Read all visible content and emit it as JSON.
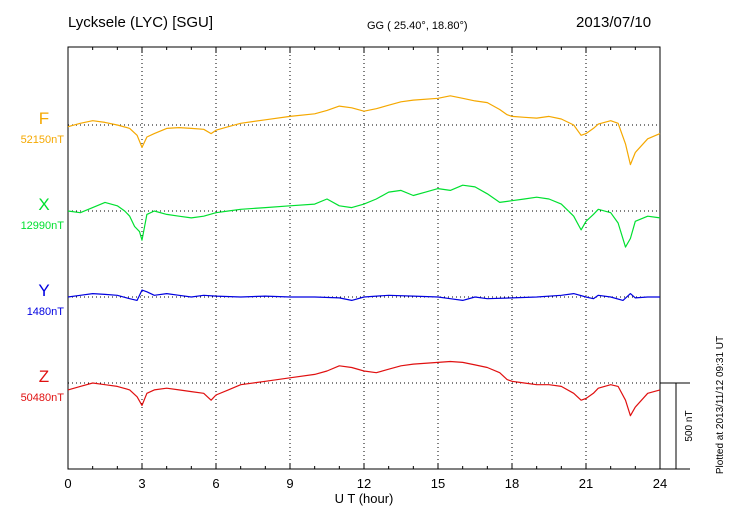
{
  "header": {
    "station": "Lycksele (LYC)  [SGU]",
    "coords": "GG ( 25.40°,  18.80°)",
    "date": "2013/07/10"
  },
  "plotted_note": "Plotted at 2013/11/12 09:31  UT",
  "scale_label": "500 nT",
  "chart_data": {
    "type": "line",
    "title": "",
    "xlabel": "U T (hour)",
    "ylabel": "",
    "xlim": [
      0,
      24
    ],
    "xticks": [
      "0",
      "3",
      "6",
      "9",
      "12",
      "15",
      "18",
      "21",
      "24"
    ],
    "grid": true,
    "scale_bar_nT": 500,
    "series": [
      {
        "name": "F",
        "baseline_label": "52150nT",
        "baseline_nT": 52150,
        "color": "#f5a800",
        "x": [
          0,
          0.5,
          1,
          1.5,
          2,
          2.5,
          2.8,
          3,
          3.2,
          3.5,
          4,
          4.5,
          5,
          5.5,
          5.8,
          6,
          6.5,
          7,
          8,
          9,
          10,
          10.5,
          11,
          11.5,
          12,
          12.5,
          13,
          13.5,
          14,
          15,
          15.5,
          16,
          16.5,
          17,
          17.5,
          17.8,
          18,
          18.5,
          19,
          19.5,
          20,
          20.5,
          20.8,
          21,
          21.3,
          21.5,
          22,
          22.3,
          22.6,
          22.8,
          23,
          23.5,
          24
        ],
        "y": [
          52140,
          52160,
          52175,
          52165,
          52150,
          52130,
          52090,
          52020,
          52080,
          52100,
          52130,
          52135,
          52130,
          52125,
          52100,
          52120,
          52140,
          52160,
          52180,
          52200,
          52215,
          52235,
          52260,
          52250,
          52230,
          52245,
          52265,
          52285,
          52295,
          52305,
          52320,
          52305,
          52290,
          52280,
          52240,
          52210,
          52200,
          52195,
          52190,
          52200,
          52185,
          52150,
          52090,
          52100,
          52130,
          52155,
          52175,
          52160,
          52040,
          51920,
          51990,
          52070,
          52100
        ]
      },
      {
        "name": "X",
        "baseline_label": "12990nT",
        "baseline_nT": 12990,
        "color": "#00e030",
        "x": [
          0,
          0.5,
          1,
          1.5,
          2,
          2.3,
          2.5,
          2.7,
          2.9,
          3,
          3.2,
          3.5,
          4,
          4.5,
          5,
          5.5,
          6,
          6.5,
          7,
          8,
          9,
          10,
          10.5,
          11,
          11.5,
          12,
          12.5,
          13,
          13.5,
          14,
          14.5,
          15,
          15.5,
          16,
          16.5,
          17,
          17.5,
          18,
          18.5,
          19,
          19.5,
          20,
          20.5,
          20.8,
          21,
          21.3,
          21.5,
          22,
          22.3,
          22.6,
          22.8,
          23,
          23.5,
          24
        ],
        "y": [
          12990,
          12980,
          13010,
          13040,
          13020,
          12990,
          12960,
          12900,
          12870,
          12820,
          12970,
          12990,
          12970,
          12960,
          12950,
          12960,
          12980,
          12990,
          13000,
          13010,
          13020,
          13030,
          13060,
          13020,
          13010,
          13030,
          13060,
          13100,
          13110,
          13080,
          13100,
          13120,
          13110,
          13140,
          13130,
          13090,
          13040,
          13050,
          13060,
          13070,
          13060,
          13030,
          12960,
          12880,
          12930,
          12970,
          13000,
          12980,
          12920,
          12780,
          12830,
          12930,
          12960,
          12950
        ]
      },
      {
        "name": "Y",
        "baseline_label": "1480nT",
        "baseline_nT": 1480,
        "color": "#0000e0",
        "x": [
          0,
          0.5,
          1,
          1.5,
          2,
          2.5,
          2.8,
          3,
          3.2,
          3.5,
          4,
          4.5,
          5,
          5.5,
          6,
          7,
          8,
          9,
          10,
          11,
          11.5,
          12,
          13,
          14,
          15,
          15.5,
          16,
          16.5,
          17,
          18,
          19,
          20,
          20.5,
          21,
          21.3,
          21.5,
          22,
          22.5,
          22.8,
          23,
          23.5,
          24
        ],
        "y": [
          1480,
          1490,
          1500,
          1495,
          1490,
          1470,
          1460,
          1520,
          1510,
          1490,
          1500,
          1490,
          1480,
          1490,
          1485,
          1480,
          1485,
          1480,
          1480,
          1475,
          1460,
          1480,
          1490,
          1485,
          1480,
          1470,
          1460,
          1480,
          1470,
          1475,
          1480,
          1490,
          1500,
          1480,
          1470,
          1490,
          1480,
          1460,
          1500,
          1475,
          1480,
          1480
        ]
      },
      {
        "name": "Z",
        "baseline_label": "50480nT",
        "baseline_nT": 50480,
        "color": "#e01010",
        "x": [
          0,
          0.5,
          1,
          1.5,
          2,
          2.5,
          2.8,
          3,
          3.2,
          3.5,
          4,
          4.5,
          5,
          5.5,
          5.8,
          6,
          6.5,
          7,
          8,
          9,
          10,
          10.5,
          11,
          11.5,
          12,
          12.5,
          13,
          13.5,
          14,
          15,
          15.5,
          16,
          16.5,
          17,
          17.5,
          17.8,
          18,
          18.5,
          19,
          19.5,
          20,
          20.5,
          20.8,
          21,
          21.3,
          21.5,
          22,
          22.3,
          22.6,
          22.8,
          23,
          23.5,
          24
        ],
        "y": [
          50440,
          50460,
          50480,
          50470,
          50460,
          50440,
          50400,
          50350,
          50420,
          50440,
          50450,
          50440,
          50430,
          50420,
          50380,
          50410,
          50440,
          50470,
          50490,
          50510,
          50530,
          50550,
          50580,
          50570,
          50550,
          50540,
          50560,
          50580,
          50590,
          50600,
          50605,
          50600,
          50585,
          50570,
          50540,
          50500,
          50490,
          50480,
          50470,
          50470,
          50460,
          50420,
          50380,
          50390,
          50420,
          50450,
          50470,
          50460,
          50380,
          50290,
          50340,
          50420,
          50440
        ]
      }
    ]
  }
}
